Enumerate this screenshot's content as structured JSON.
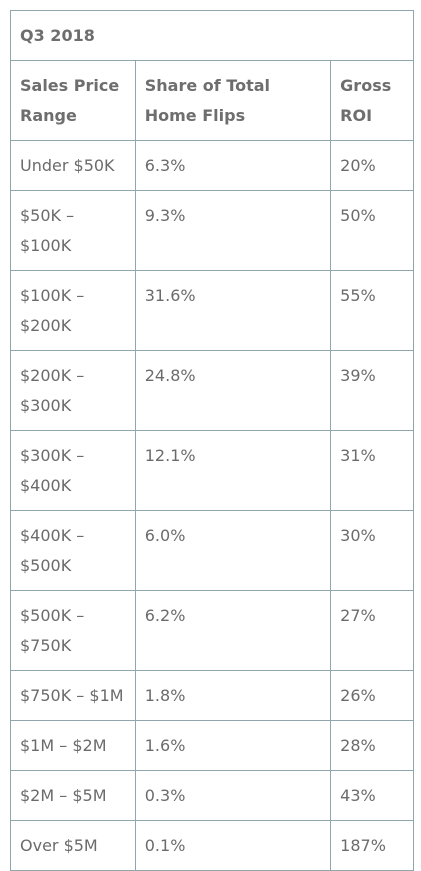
{
  "table": {
    "caption": "Q3 2018",
    "headers": [
      "Sales Price Range",
      "Share of Total Home Flips",
      "Gross ROI"
    ],
    "rows": [
      [
        "Under $50K",
        "6.3%",
        "20%"
      ],
      [
        "$50K – $100K",
        "9.3%",
        "50%"
      ],
      [
        "$100K – $200K",
        "31.6%",
        "55%"
      ],
      [
        "$200K – $300K",
        "24.8%",
        "39%"
      ],
      [
        "$300K – $400K",
        "12.1%",
        "31%"
      ],
      [
        "$400K – $500K",
        "6.0%",
        "30%"
      ],
      [
        "$500K – $750K",
        "6.2%",
        "27%"
      ],
      [
        "$750K – $1M",
        "1.8%",
        "26%"
      ],
      [
        "$1M – $2M",
        "1.6%",
        "28%"
      ],
      [
        "$2M – $5M",
        "0.3%",
        "43%"
      ],
      [
        "Over $5M",
        "0.1%",
        "187%"
      ]
    ]
  }
}
